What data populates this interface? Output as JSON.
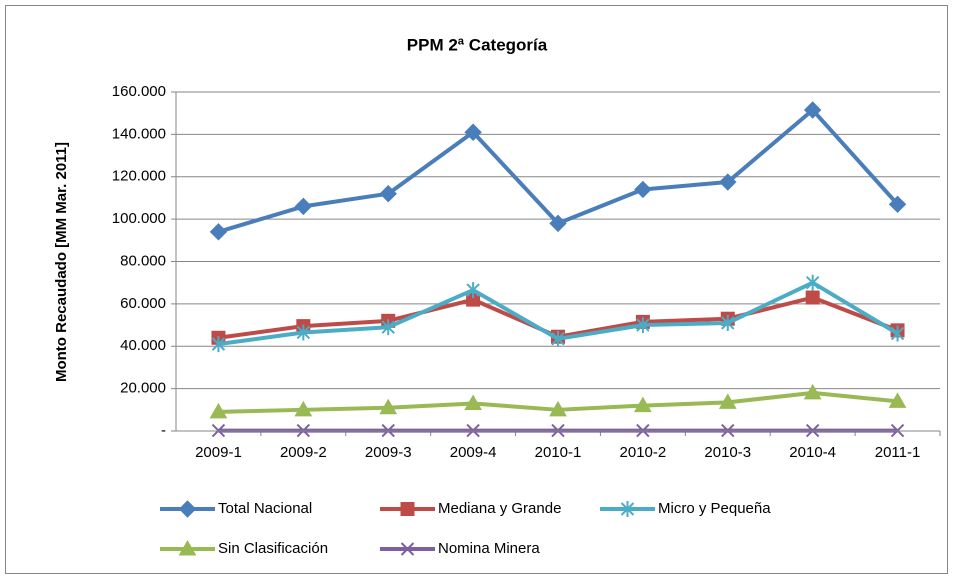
{
  "chart_data": {
    "type": "line",
    "title": "PPM 2ª Categoría",
    "ylabel": "Monto Recaudado [MM Mar. 2011]",
    "categories": [
      "2009-1",
      "2009-2",
      "2009-3",
      "2009-4",
      "2010-1",
      "2010-2",
      "2010-3",
      "2010-4",
      "2011-1"
    ],
    "series": [
      {
        "name": "Total Nacional",
        "color": "#4a7ebb",
        "marker": "diamond",
        "values": [
          94000,
          106000,
          112000,
          141000,
          98000,
          114000,
          117500,
          151500,
          107000
        ]
      },
      {
        "name": "Mediana y Grande",
        "color": "#be4b48",
        "marker": "square",
        "values": [
          44000,
          49500,
          52000,
          62000,
          44500,
          51500,
          53000,
          63000,
          47500
        ]
      },
      {
        "name": "Micro y Pequeña",
        "color": "#4bacc6",
        "marker": "star",
        "values": [
          41000,
          46500,
          49000,
          66500,
          43500,
          50000,
          51000,
          70000,
          46000
        ]
      },
      {
        "name": "Sin Clasificación",
        "color": "#98b954",
        "marker": "triangle",
        "values": [
          9000,
          10000,
          11000,
          13000,
          10000,
          12000,
          13500,
          18000,
          14000
        ]
      },
      {
        "name": "Nomina Minera",
        "color": "#7d60a0",
        "marker": "x",
        "values": [
          200,
          200,
          200,
          200,
          200,
          200,
          200,
          200,
          200
        ]
      }
    ],
    "ylim": [
      0,
      160000
    ],
    "yticks": [
      {
        "value": 0,
        "label": "-"
      },
      {
        "value": 20000,
        "label": "20.000"
      },
      {
        "value": 40000,
        "label": "40.000"
      },
      {
        "value": 60000,
        "label": "60.000"
      },
      {
        "value": 80000,
        "label": "80.000"
      },
      {
        "value": 100000,
        "label": "100.000"
      },
      {
        "value": 120000,
        "label": "120.000"
      },
      {
        "value": 140000,
        "label": "140.000"
      },
      {
        "value": 160000,
        "label": "160.000"
      }
    ],
    "grid": true,
    "legend": "bottom"
  }
}
